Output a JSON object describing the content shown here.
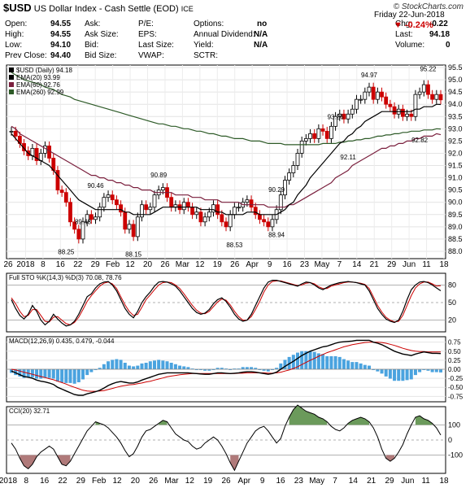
{
  "header": {
    "symbol": "$USD",
    "name": "US Dollar Index - Cash Settle (EOD)",
    "exchange": "ICE",
    "watermark": "© StockCharts.com",
    "date_line": "Friday  22-Jun-2018",
    "pct_change": "▼ -0.24%"
  },
  "stats": {
    "open_label": "Open:",
    "open": "94.55",
    "high_label": "High:",
    "high": "94.55",
    "low_label": "Low:",
    "low": "94.10",
    "prev_label": "Prev Close:",
    "prev": "94.40",
    "ask_label": "Ask:",
    "ask_size_label": "Ask Size:",
    "bid_label": "Bid:",
    "bid_size_label": "Bid Size:",
    "pe_label": "P/E:",
    "eps_label": "EPS:",
    "last_size_label": "Last Size:",
    "vwap_label": "VWAP:",
    "options_label": "Options:",
    "options": "no",
    "div_label": "Annual Dividend:",
    "div": "N/A",
    "yield_label": "Yield:",
    "yield": "N/A",
    "sctr_label": "SCTR:",
    "chg_label": "Chg:",
    "chg": "-0.22",
    "last_label": "Last:",
    "last": "94.18",
    "volume_label": "Volume:",
    "volume": "0"
  },
  "chart_data": [
    {
      "type": "candlestick",
      "panel": "price",
      "legend": [
        "$USD (Daily) 94.18",
        "EMA(20) 93.99",
        "EMA(60) 92.76",
        "EMA(260) 92.99"
      ],
      "series_colors": {
        "up": "#000000",
        "down": "#cc0000",
        "ema20": "#000000",
        "ema60": "#7a1f3d",
        "ema260": "#2d5a27"
      },
      "ylim": [
        87.7,
        95.6
      ],
      "y_ticks": [
        88.0,
        88.5,
        89.0,
        89.5,
        90.0,
        90.5,
        91.0,
        91.5,
        92.0,
        92.5,
        93.0,
        93.5,
        94.0,
        94.5,
        95.0,
        95.5
      ],
      "x_ticks": [
        "26",
        "2018",
        "8",
        "16",
        "22",
        "29",
        "Feb",
        "12",
        "20",
        "26",
        "Mar",
        "12",
        "19",
        "26",
        "Apr",
        "9",
        "16",
        "23",
        "May",
        "7",
        "14",
        "21",
        "29",
        "Jun",
        "11",
        "18"
      ],
      "annotations": [
        {
          "label": "88.25",
          "value": 88.25
        },
        {
          "label": "89.48",
          "value": 89.48
        },
        {
          "label": "90.46",
          "value": 90.46
        },
        {
          "label": "88.15",
          "value": 88.15
        },
        {
          "label": "90.89",
          "value": 90.89
        },
        {
          "label": "88.53",
          "value": 88.53
        },
        {
          "label": "90.29",
          "value": 90.29
        },
        {
          "label": "88.94",
          "value": 88.94
        },
        {
          "label": "93.26",
          "value": 93.26
        },
        {
          "label": "92.11",
          "value": 92.11
        },
        {
          "label": "94.97",
          "value": 94.97
        },
        {
          "label": "92.82",
          "value": 92.82
        },
        {
          "label": "95.22",
          "value": 95.22
        }
      ],
      "close": [
        92.9,
        92.7,
        92.4,
        92.1,
        91.9,
        92.2,
        91.7,
        92.0,
        92.3,
        91.8,
        91.3,
        90.5,
        90.4,
        90.0,
        89.2,
        88.9,
        88.5,
        89.2,
        89.5,
        89.3,
        89.4,
        89.8,
        90.2,
        90.3,
        90.1,
        89.9,
        89.6,
        88.9,
        89.1,
        88.6,
        89.4,
        89.9,
        89.7,
        89.8,
        90.3,
        90.5,
        90.6,
        90.2,
        89.8,
        89.9,
        89.7,
        90.0,
        89.8,
        89.5,
        89.6,
        89.2,
        89.4,
        89.6,
        89.9,
        89.5,
        89.2,
        89.0,
        89.5,
        89.8,
        89.8,
        90.0,
        90.1,
        89.8,
        89.5,
        89.3,
        89.2,
        89.0,
        89.3,
        89.7,
        90.3,
        90.9,
        91.2,
        91.5,
        92.0,
        92.5,
        92.6,
        92.8,
        92.6,
        93.0,
        92.9,
        92.6,
        93.1,
        93.5,
        93.6,
        93.4,
        93.6,
        93.8,
        94.2,
        94.2,
        94.5,
        94.7,
        94.2,
        94.5,
        94.3,
        94.0,
        93.9,
        93.6,
        93.8,
        93.5,
        93.6,
        93.5,
        94.4,
        94.5,
        94.8,
        94.4,
        94.2,
        94.4,
        94.18
      ],
      "ema20": [
        92.8,
        92.6,
        92.4,
        92.2,
        92.0,
        91.9,
        91.8,
        91.7,
        91.6,
        91.5,
        91.3,
        91.1,
        90.9,
        90.7,
        90.5,
        90.3,
        90.1,
        90.0,
        89.9,
        89.8,
        89.7,
        89.7,
        89.7,
        89.7,
        89.7,
        89.7,
        89.7,
        89.6,
        89.6,
        89.5,
        89.5,
        89.5,
        89.5,
        89.5,
        89.6,
        89.7,
        89.8,
        89.8,
        89.8,
        89.8,
        89.8,
        89.8,
        89.8,
        89.8,
        89.8,
        89.7,
        89.7,
        89.7,
        89.7,
        89.6,
        89.6,
        89.5,
        89.5,
        89.5,
        89.5,
        89.5,
        89.6,
        89.6,
        89.6,
        89.5,
        89.5,
        89.5,
        89.5,
        89.5,
        89.6,
        89.7,
        89.9,
        90.0,
        90.3,
        90.5,
        90.7,
        91.0,
        91.2,
        91.4,
        91.6,
        91.8,
        92.0,
        92.2,
        92.4,
        92.5,
        92.7,
        92.8,
        93.0,
        93.1,
        93.3,
        93.4,
        93.5,
        93.6,
        93.7,
        93.7,
        93.7,
        93.7,
        93.7,
        93.7,
        93.7,
        93.7,
        93.8,
        93.8,
        93.9,
        93.9,
        93.9,
        94.0,
        93.99
      ],
      "ema60": [
        93.1,
        93.0,
        92.8,
        92.7,
        92.6,
        92.5,
        92.4,
        92.3,
        92.2,
        92.1,
        92.0,
        91.9,
        91.8,
        91.7,
        91.6,
        91.5,
        91.4,
        91.3,
        91.2,
        91.1,
        91.1,
        91.0,
        91.0,
        90.9,
        90.9,
        90.8,
        90.8,
        90.7,
        90.7,
        90.6,
        90.6,
        90.5,
        90.5,
        90.5,
        90.4,
        90.4,
        90.4,
        90.4,
        90.4,
        90.3,
        90.3,
        90.3,
        90.3,
        90.2,
        90.2,
        90.2,
        90.1,
        90.1,
        90.1,
        90.1,
        90.0,
        90.0,
        90.0,
        90.0,
        90.0,
        89.9,
        89.9,
        89.9,
        89.9,
        89.9,
        89.9,
        89.8,
        89.8,
        89.8,
        89.8,
        89.8,
        89.9,
        89.9,
        90.0,
        90.1,
        90.2,
        90.3,
        90.4,
        90.5,
        90.6,
        90.7,
        90.8,
        91.0,
        91.1,
        91.2,
        91.3,
        91.5,
        91.6,
        91.7,
        91.8,
        91.9,
        92.0,
        92.1,
        92.2,
        92.2,
        92.3,
        92.3,
        92.4,
        92.4,
        92.5,
        92.5,
        92.6,
        92.6,
        92.7,
        92.7,
        92.7,
        92.8,
        92.76
      ],
      "ema260": [
        95.3,
        95.2,
        95.1,
        95.0,
        94.95,
        94.9,
        94.85,
        94.8,
        94.7,
        94.65,
        94.6,
        94.5,
        94.4,
        94.35,
        94.3,
        94.2,
        94.15,
        94.1,
        94.05,
        94.0,
        93.95,
        93.9,
        93.85,
        93.8,
        93.75,
        93.7,
        93.65,
        93.6,
        93.55,
        93.5,
        93.45,
        93.4,
        93.35,
        93.3,
        93.25,
        93.2,
        93.2,
        93.15,
        93.1,
        93.1,
        93.05,
        93.0,
        93.0,
        92.95,
        92.9,
        92.9,
        92.85,
        92.8,
        92.8,
        92.75,
        92.7,
        92.7,
        92.65,
        92.6,
        92.6,
        92.6,
        92.55,
        92.5,
        92.5,
        92.5,
        92.45,
        92.4,
        92.4,
        92.4,
        92.4,
        92.35,
        92.35,
        92.35,
        92.35,
        92.35,
        92.35,
        92.35,
        92.35,
        92.35,
        92.4,
        92.4,
        92.4,
        92.4,
        92.45,
        92.45,
        92.5,
        92.5,
        92.55,
        92.55,
        92.6,
        92.6,
        92.65,
        92.7,
        92.7,
        92.75,
        92.75,
        92.8,
        92.8,
        92.85,
        92.85,
        92.9,
        92.9,
        92.9,
        92.95,
        92.95,
        92.95,
        93.0,
        92.99
      ]
    },
    {
      "type": "line",
      "panel": "stochastic",
      "legend": [
        "Full STO %K(14,3) %D(3) 70.08, 78.76"
      ],
      "ylim": [
        0,
        100
      ],
      "y_ticks": [
        20,
        50,
        80
      ],
      "k": [
        55,
        40,
        28,
        22,
        30,
        45,
        35,
        20,
        12,
        18,
        30,
        22,
        15,
        10,
        12,
        18,
        30,
        45,
        60,
        65,
        75,
        82,
        85,
        86,
        80,
        70,
        55,
        40,
        30,
        24,
        35,
        50,
        60,
        68,
        78,
        85,
        86,
        85,
        82,
        78,
        70,
        60,
        50,
        40,
        33,
        30,
        32,
        38,
        48,
        55,
        58,
        52,
        42,
        30,
        22,
        18,
        20,
        30,
        45,
        60,
        75,
        85,
        88,
        88,
        86,
        84,
        82,
        80,
        78,
        82,
        85,
        84,
        80,
        75,
        72,
        76,
        80,
        82,
        84,
        85,
        86,
        85,
        84,
        82,
        80,
        70,
        55,
        40,
        30,
        22,
        18,
        16,
        20,
        35,
        55,
        72,
        80,
        85,
        86,
        84,
        80,
        75,
        70.08
      ],
      "d": [
        58,
        48,
        35,
        26,
        28,
        38,
        38,
        28,
        18,
        17,
        25,
        26,
        20,
        14,
        12,
        16,
        25,
        38,
        52,
        62,
        70,
        78,
        83,
        85,
        82,
        74,
        60,
        46,
        35,
        28,
        30,
        42,
        55,
        63,
        72,
        80,
        84,
        85,
        84,
        80,
        74,
        65,
        55,
        45,
        37,
        32,
        31,
        35,
        43,
        51,
        56,
        54,
        46,
        35,
        26,
        20,
        20,
        26,
        38,
        52,
        68,
        80,
        86,
        87,
        87,
        85,
        83,
        81,
        79,
        80,
        83,
        84,
        82,
        77,
        74,
        74,
        78,
        80,
        82,
        84,
        85,
        85,
        84,
        83,
        81,
        74,
        60,
        45,
        34,
        25,
        20,
        17,
        18,
        28,
        45,
        62,
        75,
        82,
        85,
        85,
        82,
        78,
        78.76
      ]
    },
    {
      "type": "line",
      "panel": "macd",
      "legend": [
        "MACD(12,26,9) 0.435, 0.479, -0.044"
      ],
      "ylim": [
        -0.9,
        0.9
      ],
      "y_ticks": [
        -0.75,
        -0.5,
        -0.25,
        0.0,
        0.25,
        0.5,
        0.75
      ],
      "macd": [
        -0.05,
        -0.1,
        -0.15,
        -0.2,
        -0.22,
        -0.25,
        -0.3,
        -0.33,
        -0.35,
        -0.38,
        -0.42,
        -0.5,
        -0.55,
        -0.6,
        -0.65,
        -0.7,
        -0.72,
        -0.72,
        -0.68,
        -0.65,
        -0.62,
        -0.58,
        -0.52,
        -0.45,
        -0.4,
        -0.36,
        -0.34,
        -0.36,
        -0.38,
        -0.38,
        -0.35,
        -0.3,
        -0.26,
        -0.22,
        -0.18,
        -0.14,
        -0.12,
        -0.1,
        -0.1,
        -0.1,
        -0.1,
        -0.1,
        -0.1,
        -0.11,
        -0.12,
        -0.13,
        -0.14,
        -0.14,
        -0.12,
        -0.1,
        -0.1,
        -0.11,
        -0.12,
        -0.11,
        -0.1,
        -0.08,
        -0.07,
        -0.07,
        -0.08,
        -0.1,
        -0.12,
        -0.14,
        -0.12,
        -0.08,
        0.0,
        0.08,
        0.15,
        0.22,
        0.3,
        0.38,
        0.44,
        0.5,
        0.54,
        0.58,
        0.62,
        0.64,
        0.68,
        0.72,
        0.75,
        0.76,
        0.77,
        0.78,
        0.8,
        0.8,
        0.8,
        0.8,
        0.75,
        0.72,
        0.68,
        0.62,
        0.56,
        0.5,
        0.46,
        0.42,
        0.4,
        0.38,
        0.42,
        0.45,
        0.48,
        0.46,
        0.44,
        0.44,
        0.435
      ],
      "signal": [
        0.0,
        -0.02,
        -0.05,
        -0.08,
        -0.11,
        -0.14,
        -0.17,
        -0.2,
        -0.23,
        -0.26,
        -0.29,
        -0.33,
        -0.37,
        -0.41,
        -0.46,
        -0.5,
        -0.54,
        -0.58,
        -0.6,
        -0.61,
        -0.61,
        -0.6,
        -0.59,
        -0.56,
        -0.53,
        -0.5,
        -0.47,
        -0.45,
        -0.43,
        -0.42,
        -0.4,
        -0.38,
        -0.35,
        -0.33,
        -0.3,
        -0.27,
        -0.24,
        -0.21,
        -0.19,
        -0.17,
        -0.15,
        -0.14,
        -0.13,
        -0.12,
        -0.12,
        -0.12,
        -0.12,
        -0.12,
        -0.12,
        -0.12,
        -0.12,
        -0.12,
        -0.12,
        -0.12,
        -0.11,
        -0.11,
        -0.1,
        -0.1,
        -0.1,
        -0.1,
        -0.1,
        -0.11,
        -0.11,
        -0.1,
        -0.08,
        -0.05,
        -0.02,
        0.02,
        0.07,
        0.13,
        0.19,
        0.25,
        0.3,
        0.36,
        0.41,
        0.46,
        0.5,
        0.54,
        0.58,
        0.62,
        0.65,
        0.68,
        0.7,
        0.72,
        0.74,
        0.75,
        0.75,
        0.75,
        0.74,
        0.72,
        0.69,
        0.66,
        0.62,
        0.58,
        0.55,
        0.52,
        0.5,
        0.49,
        0.49,
        0.48,
        0.48,
        0.48,
        0.479
      ]
    },
    {
      "type": "line",
      "panel": "cci",
      "legend": [
        "CCI(20) 32.71"
      ],
      "ylim": [
        -220,
        220
      ],
      "y_ticks": [
        -100,
        0,
        100
      ],
      "cci": [
        -20,
        -60,
        -120,
        -170,
        -190,
        -160,
        -110,
        -80,
        -60,
        -40,
        -60,
        -110,
        -160,
        -170,
        -140,
        -90,
        -40,
        10,
        60,
        90,
        120,
        110,
        100,
        80,
        50,
        20,
        -20,
        -70,
        -110,
        -90,
        -40,
        20,
        60,
        70,
        90,
        110,
        130,
        120,
        80,
        40,
        20,
        0,
        -10,
        -40,
        -60,
        -50,
        -20,
        0,
        20,
        0,
        -40,
        -90,
        -150,
        -200,
        -140,
        -80,
        -20,
        20,
        60,
        80,
        90,
        60,
        20,
        -20,
        10,
        90,
        150,
        200,
        230,
        210,
        190,
        180,
        170,
        150,
        140,
        120,
        90,
        70,
        60,
        80,
        110,
        130,
        140,
        150,
        140,
        120,
        80,
        20,
        -60,
        -120,
        -140,
        -120,
        -80,
        -30,
        40,
        100,
        150,
        160,
        140,
        130,
        110,
        80,
        32.71
      ]
    },
    {
      "type": "axis",
      "panel": "bottom-dates",
      "x_ticks": [
        "2018",
        "8",
        "16",
        "22",
        "29",
        "Feb",
        "12",
        "20",
        "26",
        "Mar",
        "12",
        "19",
        "26",
        "Apr",
        "9",
        "16",
        "23",
        "May",
        "7",
        "14",
        "21",
        "29",
        "Jun",
        "11",
        "18"
      ]
    }
  ]
}
